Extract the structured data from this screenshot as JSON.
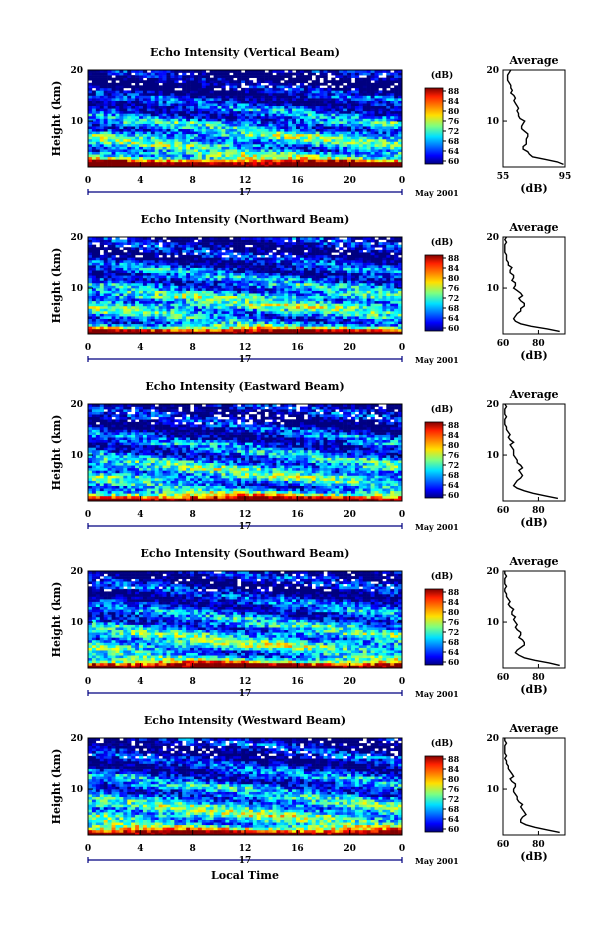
{
  "chart_data": [
    {
      "type": "heatmap",
      "title": "Echo Intensity (Vertical Beam)",
      "ylabel": "Height (km)",
      "x_ticks": [
        "0",
        "4",
        "8",
        "12",
        "16",
        "20",
        "0"
      ],
      "y_ticks": [
        "20",
        "10"
      ],
      "xlim": [
        0,
        24
      ],
      "ylim": [
        1,
        20
      ],
      "day_label": "17",
      "month_label": "May 2001",
      "colorbar": {
        "unit": "(dB)",
        "ticks": [
          "88",
          "84",
          "80",
          "76",
          "72",
          "68",
          "64",
          "60"
        ],
        "range": [
          60,
          88
        ]
      },
      "profile": {
        "title": "Average",
        "xlabel": "(dB)",
        "x_ticks": [
          "55",
          "95"
        ],
        "xlim": [
          55,
          95
        ],
        "y_ticks": [
          "20",
          "10"
        ],
        "ylim": [
          1,
          20
        ],
        "heights": [
          1.5,
          2,
          2.5,
          3,
          3.5,
          4,
          4.5,
          5,
          5.5,
          6,
          6.5,
          7,
          7.5,
          8,
          8.5,
          9,
          9.5,
          10,
          10.5,
          11,
          11.5,
          12,
          12.5,
          13,
          13.5,
          14,
          14.5,
          15,
          15.5,
          16,
          16.5,
          17,
          17.5,
          18,
          18.5,
          19,
          19.5,
          20
        ],
        "values": [
          94,
          90,
          82,
          74,
          72,
          71,
          68,
          68,
          70,
          70,
          70,
          71,
          71,
          69,
          67,
          67,
          68,
          69,
          66,
          65,
          65,
          64,
          65,
          64,
          63,
          62,
          63,
          62,
          60,
          61,
          60,
          60,
          59,
          58,
          58,
          58,
          59,
          60
        ]
      }
    },
    {
      "type": "heatmap",
      "title": "Echo Intensity (Northward Beam)",
      "ylabel": "Height (km)",
      "x_ticks": [
        "0",
        "4",
        "8",
        "12",
        "16",
        "20",
        "0"
      ],
      "y_ticks": [
        "20",
        "10"
      ],
      "xlim": [
        0,
        24
      ],
      "ylim": [
        1,
        20
      ],
      "day_label": "17",
      "month_label": "May 2001",
      "colorbar": {
        "unit": "(dB)",
        "ticks": [
          "88",
          "84",
          "80",
          "76",
          "72",
          "68",
          "64",
          "60"
        ],
        "range": [
          60,
          88
        ]
      },
      "profile": {
        "title": "Average",
        "xlabel": "(dB)",
        "x_ticks": [
          "60",
          "80"
        ],
        "xlim": [
          60,
          95
        ],
        "y_ticks": [
          "20",
          "10"
        ],
        "ylim": [
          1,
          20
        ],
        "heights": [
          1.5,
          2,
          2.5,
          3,
          3.5,
          4,
          4.5,
          5,
          5.5,
          6,
          6.5,
          7,
          7.5,
          8,
          8.5,
          9,
          9.5,
          10,
          10.5,
          11,
          11.5,
          12,
          12.5,
          13,
          13.5,
          14,
          14.5,
          15,
          15.5,
          16,
          16.5,
          17,
          17.5,
          18,
          18.5,
          19,
          19.5,
          20
        ],
        "values": [
          92,
          85,
          76,
          70,
          67,
          66,
          67,
          68,
          70,
          70,
          72,
          72,
          70,
          69,
          71,
          70,
          68,
          66,
          67,
          67,
          65,
          66,
          66,
          64,
          64,
          65,
          63,
          63,
          62,
          62,
          62,
          61,
          61,
          61,
          61,
          62,
          61,
          62
        ]
      }
    },
    {
      "type": "heatmap",
      "title": "Echo Intensity (Eastward Beam)",
      "ylabel": "Height (km)",
      "x_ticks": [
        "0",
        "4",
        "8",
        "12",
        "16",
        "20",
        "0"
      ],
      "y_ticks": [
        "20",
        "10"
      ],
      "xlim": [
        0,
        24
      ],
      "ylim": [
        1,
        20
      ],
      "day_label": "17",
      "month_label": "May 2001",
      "colorbar": {
        "unit": "(dB)",
        "ticks": [
          "88",
          "84",
          "80",
          "76",
          "72",
          "68",
          "64",
          "60"
        ],
        "range": [
          60,
          88
        ]
      },
      "profile": {
        "title": "Average",
        "xlabel": "(dB)",
        "x_ticks": [
          "60",
          "80"
        ],
        "xlim": [
          60,
          95
        ],
        "y_ticks": [
          "20",
          "10"
        ],
        "ylim": [
          1,
          20
        ],
        "heights": [
          1.5,
          2,
          2.5,
          3,
          3.5,
          4,
          4.5,
          5,
          5.5,
          6,
          6.5,
          7,
          7.5,
          8,
          8.5,
          9,
          9.5,
          10,
          10.5,
          11,
          11.5,
          12,
          12.5,
          13,
          13.5,
          14,
          14.5,
          15,
          15.5,
          16,
          16.5,
          17,
          17.5,
          18,
          18.5,
          19,
          19.5,
          20
        ],
        "values": [
          91,
          84,
          77,
          72,
          68,
          66,
          67,
          68,
          70,
          71,
          70,
          69,
          71,
          70,
          68,
          68,
          67,
          66,
          66,
          66,
          65,
          64,
          66,
          64,
          63,
          64,
          63,
          62,
          62,
          61,
          61,
          61,
          62,
          61,
          61,
          61,
          62,
          61
        ]
      }
    },
    {
      "type": "heatmap",
      "title": "Echo Intensity (Southward Beam)",
      "ylabel": "Height (km)",
      "x_ticks": [
        "0",
        "4",
        "8",
        "12",
        "16",
        "20",
        "0"
      ],
      "y_ticks": [
        "20",
        "10"
      ],
      "xlim": [
        0,
        24
      ],
      "ylim": [
        1,
        20
      ],
      "day_label": "17",
      "month_label": "May 2001",
      "colorbar": {
        "unit": "(dB)",
        "ticks": [
          "88",
          "84",
          "80",
          "76",
          "72",
          "68",
          "64",
          "60"
        ],
        "range": [
          60,
          88
        ]
      },
      "profile": {
        "title": "Average",
        "xlabel": "(dB)",
        "x_ticks": [
          "60",
          "80"
        ],
        "xlim": [
          60,
          95
        ],
        "y_ticks": [
          "20",
          "10"
        ],
        "ylim": [
          1,
          20
        ],
        "heights": [
          1.5,
          2,
          2.5,
          3,
          3.5,
          4,
          4.5,
          5,
          5.5,
          6,
          6.5,
          7,
          7.5,
          8,
          8.5,
          9,
          9.5,
          10,
          10.5,
          11,
          11.5,
          12,
          12.5,
          13,
          13.5,
          14,
          14.5,
          15,
          15.5,
          16,
          16.5,
          17,
          17.5,
          18,
          18.5,
          19,
          19.5,
          20
        ],
        "values": [
          92,
          86,
          78,
          72,
          69,
          67,
          68,
          70,
          72,
          72,
          71,
          69,
          70,
          70,
          68,
          67,
          68,
          67,
          66,
          67,
          65,
          65,
          66,
          64,
          63,
          64,
          63,
          62,
          62,
          61,
          61,
          62,
          61,
          61,
          61,
          62,
          61,
          61
        ]
      }
    },
    {
      "type": "heatmap",
      "title": "Echo Intensity (Westward Beam)",
      "ylabel": "Height (km)",
      "xlabel": "Local Time",
      "x_ticks": [
        "0",
        "4",
        "8",
        "12",
        "16",
        "20",
        "0"
      ],
      "y_ticks": [
        "20",
        "10"
      ],
      "xlim": [
        0,
        24
      ],
      "ylim": [
        1,
        20
      ],
      "day_label": "17",
      "month_label": "May 2001",
      "colorbar": {
        "unit": "(dB)",
        "ticks": [
          "88",
          "84",
          "80",
          "76",
          "72",
          "68",
          "64",
          "60"
        ],
        "range": [
          60,
          88
        ]
      },
      "profile": {
        "title": "Average",
        "xlabel": "(dB)",
        "x_ticks": [
          "60",
          "80"
        ],
        "xlim": [
          60,
          95
        ],
        "y_ticks": [
          "20",
          "10"
        ],
        "ylim": [
          1,
          20
        ],
        "heights": [
          1.5,
          2,
          2.5,
          3,
          3.5,
          4,
          4.5,
          5,
          5.5,
          6,
          6.5,
          7,
          7.5,
          8,
          8.5,
          9,
          9.5,
          10,
          10.5,
          11,
          11.5,
          12,
          12.5,
          13,
          13.5,
          14,
          14.5,
          15,
          15.5,
          16,
          16.5,
          17,
          17.5,
          18,
          18.5,
          19,
          19.5,
          20
        ],
        "values": [
          92,
          85,
          78,
          73,
          70,
          70,
          71,
          73,
          72,
          71,
          70,
          71,
          69,
          68,
          68,
          67,
          66,
          66,
          67,
          67,
          65,
          64,
          66,
          65,
          64,
          63,
          63,
          62,
          62,
          61,
          62,
          61,
          61,
          61,
          61,
          62,
          61,
          61
        ]
      }
    }
  ]
}
